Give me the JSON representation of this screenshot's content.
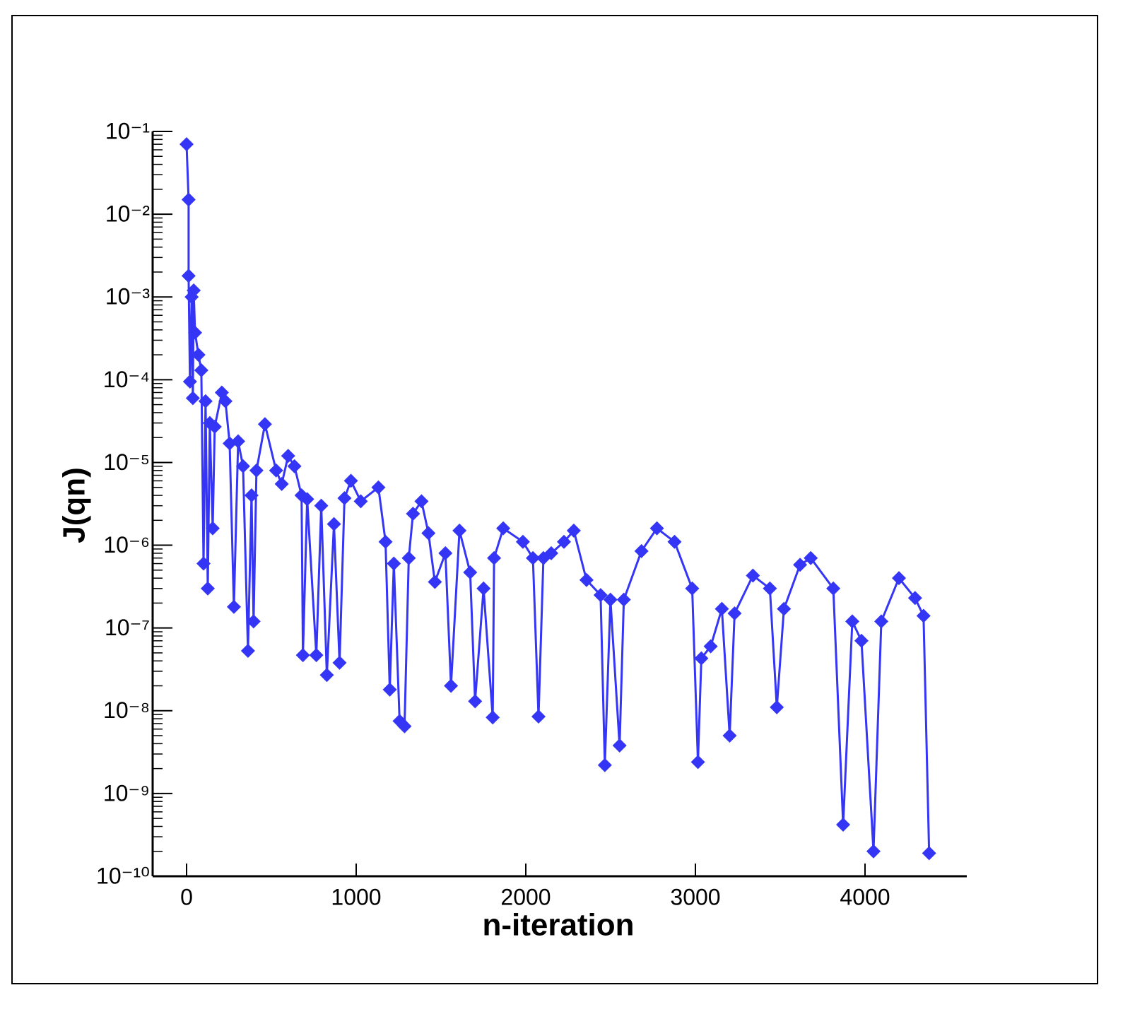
{
  "chart_data": {
    "type": "line",
    "x_label": "n-iteration",
    "y_label": "J(qn)",
    "log_y": true,
    "minor_ticks": true,
    "marker": "diamond",
    "xlim": [
      -200,
      4600
    ],
    "xticks": [
      0,
      1000,
      2000,
      3000,
      4000
    ],
    "ylim": [
      1e-10,
      0.1
    ],
    "yticks": [
      {
        "value": 1e-10,
        "label": "10⁻¹⁰"
      },
      {
        "value": 1e-09,
        "label": "10⁻⁹"
      },
      {
        "value": 1e-08,
        "label": "10⁻⁸"
      },
      {
        "value": 1e-07,
        "label": "10⁻⁷"
      },
      {
        "value": 1e-06,
        "label": "10⁻⁶"
      },
      {
        "value": 1e-05,
        "label": "10⁻⁵"
      },
      {
        "value": 0.0001,
        "label": "10⁻⁴"
      },
      {
        "value": 0.001,
        "label": "10⁻³"
      },
      {
        "value": 0.01,
        "label": "10⁻²"
      },
      {
        "value": 0.1,
        "label": "10⁻¹"
      }
    ],
    "series": [
      {
        "color": "#3535f5",
        "x": [
          0,
          12,
          12,
          20,
          30,
          37,
          42,
          50,
          70,
          87,
          100,
          112,
          125,
          137,
          154,
          166,
          208,
          229,
          254,
          279,
          304,
          333,
          362,
          383,
          395,
          412,
          462,
          528,
          561,
          599,
          636,
          678,
          686,
          711,
          765,
          794,
          827,
          869,
          902,
          931,
          969,
          1027,
          1131,
          1173,
          1198,
          1222,
          1256,
          1285,
          1310,
          1335,
          1385,
          1426,
          1464,
          1526,
          1559,
          1609,
          1672,
          1701,
          1751,
          1805,
          1813,
          1867,
          1983,
          2042,
          2075,
          2104,
          2150,
          2225,
          2283,
          2358,
          2441,
          2466,
          2499,
          2553,
          2578,
          2682,
          2773,
          2877,
          2981,
          3015,
          3035,
          3090,
          3156,
          3202,
          3231,
          3339,
          3439,
          3480,
          3522,
          3617,
          3680,
          3813,
          3871,
          3925,
          3979,
          4050,
          4096,
          4200,
          4295,
          4345,
          4378
        ],
        "values": [
          0.07,
          0.015,
          0.0018,
          9.5e-05,
          0.001,
          6e-05,
          0.0012,
          0.00037,
          0.0002,
          0.00013,
          6e-07,
          5.5e-05,
          3e-07,
          3e-05,
          1.6e-06,
          2.7e-05,
          7e-05,
          5.5e-05,
          1.7e-05,
          1.8e-07,
          1.8e-05,
          9e-06,
          5.3e-08,
          4e-06,
          1.2e-07,
          8e-06,
          2.9e-05,
          8e-06,
          5.5e-06,
          1.2e-05,
          9e-06,
          4e-06,
          4.7e-08,
          3.6e-06,
          4.7e-08,
          3e-06,
          2.7e-08,
          1.8e-06,
          3.8e-08,
          3.7e-06,
          6e-06,
          3.4e-06,
          5e-06,
          1.1e-06,
          1.8e-08,
          6e-07,
          7.5e-09,
          6.5e-09,
          7e-07,
          2.4e-06,
          3.4e-06,
          1.4e-06,
          3.6e-07,
          8e-07,
          2e-08,
          1.5e-06,
          4.7e-07,
          1.3e-08,
          3e-07,
          8.3e-09,
          7e-07,
          1.6e-06,
          1.1e-06,
          7e-07,
          8.5e-09,
          7e-07,
          8e-07,
          1.1e-06,
          1.5e-06,
          3.8e-07,
          2.5e-07,
          2.2e-09,
          2.2e-07,
          3.8e-09,
          2.2e-07,
          8.5e-07,
          1.6e-06,
          1.1e-06,
          3e-07,
          2.4e-09,
          4.3e-08,
          6e-08,
          1.7e-07,
          5e-09,
          1.5e-07,
          4.3e-07,
          3e-07,
          1.1e-08,
          1.7e-07,
          5.8e-07,
          7e-07,
          3e-07,
          4.2e-10,
          1.2e-07,
          7e-08,
          2e-10,
          1.2e-07,
          4e-07,
          2.3e-07,
          1.4e-07,
          1.9e-10
        ]
      }
    ]
  }
}
